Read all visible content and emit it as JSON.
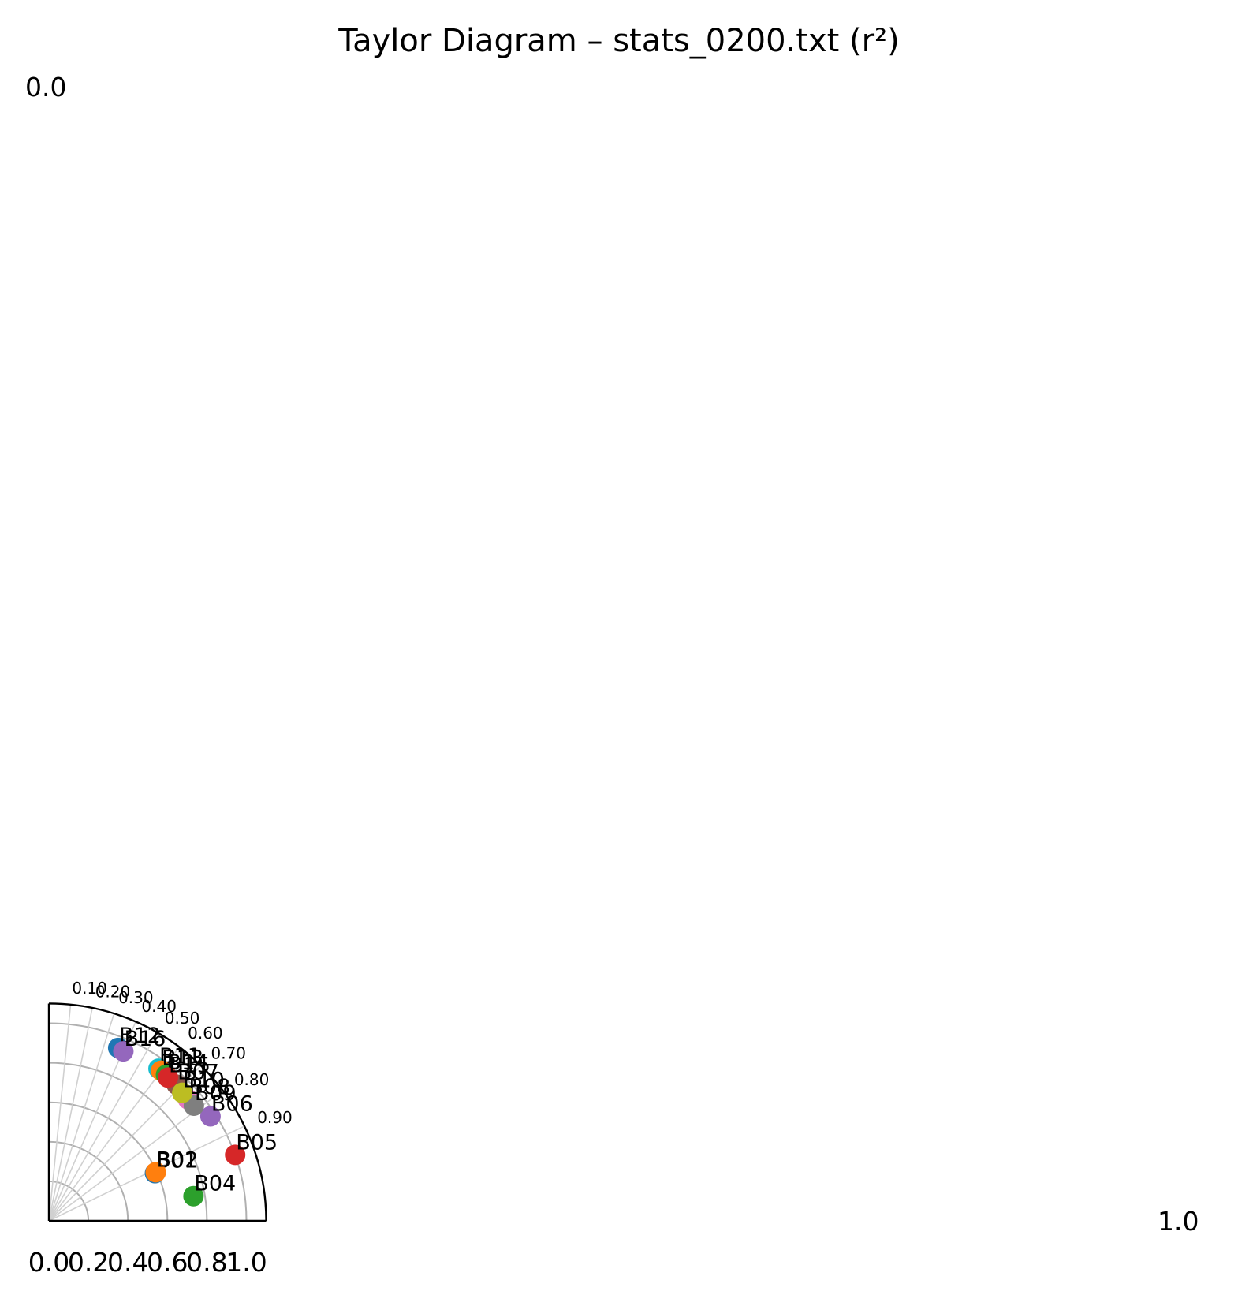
{
  "chart_data": {
    "type": "scatter",
    "subtype": "taylor-diagram",
    "title": "Taylor Diagram – stats_0200.txt (r²)",
    "radial_axis": {
      "min": 0.0,
      "max": 1.1,
      "ticks": [
        0.2,
        0.4,
        0.6,
        0.8,
        1.0
      ],
      "tick_labels": [
        "0.0",
        "0.2",
        "0.4",
        "0.6",
        "0.8",
        "1.0"
      ]
    },
    "angular_axis": {
      "label_top": "0.0",
      "label_right": "1.0",
      "correlation_ticks": [
        0.1,
        0.2,
        0.3,
        0.4,
        0.5,
        0.6,
        0.7,
        0.8,
        0.9
      ],
      "correlation_tick_labels": [
        "0.10",
        "0.20",
        "0.30",
        "0.40",
        "0.50",
        "0.60",
        "0.70",
        "0.80",
        "0.90"
      ]
    },
    "grid": true,
    "points": [
      {
        "label": "B01",
        "x": 0.537,
        "y": 0.241,
        "color": "#1f77b4"
      },
      {
        "label": "B02",
        "x": 0.541,
        "y": 0.246,
        "color": "#ff7f0e"
      },
      {
        "label": "B04",
        "x": 0.732,
        "y": 0.125,
        "color": "#2ca02c"
      },
      {
        "label": "B05",
        "x": 0.943,
        "y": 0.334,
        "color": "#d62728"
      },
      {
        "label": "B06",
        "x": 0.818,
        "y": 0.529,
        "color": "#9467bd"
      },
      {
        "label": "B07",
        "x": 0.647,
        "y": 0.689,
        "color": "#8c564b"
      },
      {
        "label": "B08",
        "x": 0.704,
        "y": 0.615,
        "color": "#e377c2"
      },
      {
        "label": "B09",
        "x": 0.734,
        "y": 0.583,
        "color": "#7f7f7f"
      },
      {
        "label": "B10",
        "x": 0.675,
        "y": 0.648,
        "color": "#bcbd22"
      },
      {
        "label": "B11",
        "x": 0.555,
        "y": 0.77,
        "color": "#17becf"
      },
      {
        "label": "B12",
        "x": 0.351,
        "y": 0.875,
        "color": "#1f77b4"
      },
      {
        "label": "B13",
        "x": 0.568,
        "y": 0.76,
        "color": "#ff7f0e"
      },
      {
        "label": "B14",
        "x": 0.593,
        "y": 0.739,
        "color": "#2ca02c"
      },
      {
        "label": "B15",
        "x": 0.603,
        "y": 0.725,
        "color": "#d62728"
      },
      {
        "label": "B16",
        "x": 0.377,
        "y": 0.858,
        "color": "#9467bd"
      }
    ]
  }
}
